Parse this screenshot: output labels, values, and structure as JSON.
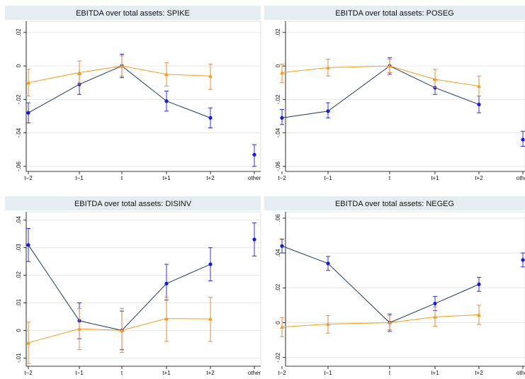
{
  "colors": {
    "series_a": "#1a1ad6",
    "series_a_line": "#1f3a5c",
    "series_b": "#f39c1e",
    "series_b_error": "#e8822a",
    "panel_header": "#e4edf2",
    "grid": "#e6e6e6",
    "axis": "#000000"
  },
  "chart_data": [
    {
      "type": "line",
      "title": "EBITDA over total assets: SPIKE",
      "categories": [
        "t−2",
        "t−1",
        "t",
        "t+1",
        "t+2",
        "other"
      ],
      "ylim": [
        -0.063,
        0.025
      ],
      "yticks": [
        ".02",
        "0",
        "-.02",
        "-.04",
        "-.06"
      ],
      "ytick_values": [
        0.02,
        0,
        -0.02,
        -0.04,
        -0.06
      ],
      "grid": true,
      "series": [
        {
          "marker": "circle",
          "values": [
            -0.028,
            -0.011,
            0.0,
            -0.021,
            -0.031,
            -0.053
          ],
          "ci": [
            [
              -0.034,
              -0.022
            ],
            [
              -0.017,
              -0.005
            ],
            [
              -0.007,
              0.007
            ],
            [
              -0.027,
              -0.015
            ],
            [
              -0.037,
              -0.025
            ],
            [
              -0.06,
              -0.047
            ]
          ]
        },
        {
          "marker": "triangle",
          "values": [
            -0.01,
            -0.004,
            0.0,
            -0.005,
            -0.006,
            null
          ],
          "ci": [
            [
              -0.018,
              -0.002
            ],
            [
              -0.011,
              0.003
            ],
            [
              -0.006,
              0.006
            ],
            [
              -0.012,
              0.002
            ],
            [
              -0.014,
              0.001
            ],
            null
          ]
        }
      ]
    },
    {
      "type": "line",
      "title": "EBITDA over total assets: POSEG",
      "categories": [
        "t−2",
        "t−1",
        "t",
        "t+1",
        "t+2",
        "other"
      ],
      "ylim": [
        -0.063,
        0.025
      ],
      "yticks": [
        ".02",
        "0",
        "-.02",
        "-.04",
        "-.06"
      ],
      "ytick_values": [
        0.02,
        0,
        -0.02,
        -0.04,
        -0.06
      ],
      "grid": true,
      "series": [
        {
          "marker": "circle",
          "values": [
            -0.031,
            -0.027,
            0.0,
            -0.013,
            -0.023,
            -0.044
          ],
          "ci": [
            [
              -0.035,
              -0.026
            ],
            [
              -0.031,
              -0.022
            ],
            [
              -0.005,
              0.005
            ],
            [
              -0.017,
              -0.008
            ],
            [
              -0.028,
              -0.018
            ],
            [
              -0.048,
              -0.039
            ]
          ]
        },
        {
          "marker": "triangle",
          "values": [
            -0.004,
            -0.001,
            0.0,
            -0.008,
            -0.012,
            null
          ],
          "ci": [
            [
              -0.01,
              0.001
            ],
            [
              -0.006,
              0.004
            ],
            [
              -0.004,
              0.004
            ],
            [
              -0.013,
              -0.002
            ],
            [
              -0.018,
              -0.006
            ],
            null
          ]
        }
      ]
    },
    {
      "type": "line",
      "title": "EBITDA over total assets: DISINV",
      "categories": [
        "t−2",
        "t−1",
        "t",
        "t+1",
        "t+2",
        "other"
      ],
      "ylim": [
        -0.013,
        0.042
      ],
      "yticks": [
        ".04",
        ".03",
        ".02",
        ".01",
        "0",
        "-.01"
      ],
      "ytick_values": [
        0.04,
        0.03,
        0.02,
        0.01,
        0,
        -0.01
      ],
      "grid": true,
      "series": [
        {
          "marker": "circle",
          "values": [
            0.031,
            0.0035,
            0.0,
            0.017,
            0.024,
            0.033
          ],
          "ci": [
            [
              0.025,
              0.037
            ],
            [
              -0.003,
              0.01
            ],
            [
              -0.007,
              0.007
            ],
            [
              0.011,
              0.024
            ],
            [
              0.018,
              0.03
            ],
            [
              0.027,
              0.039
            ]
          ]
        },
        {
          "marker": "triangle",
          "values": [
            -0.0045,
            0.0006,
            0.0,
            0.0043,
            0.0042,
            null
          ],
          "ci": [
            [
              -0.012,
              0.003
            ],
            [
              -0.007,
              0.008
            ],
            [
              -0.008,
              0.008
            ],
            [
              -0.004,
              0.012
            ],
            [
              -0.004,
              0.012
            ],
            null
          ]
        }
      ]
    },
    {
      "type": "line",
      "title": "EBITDA over total assets: NEGEG",
      "categories": [
        "t−2",
        "t−1",
        "t",
        "t+1",
        "t+2",
        "other"
      ],
      "ylim": [
        -0.025,
        0.062
      ],
      "yticks": [
        ".06",
        ".04",
        ".02",
        "0",
        "-.02"
      ],
      "ytick_values": [
        0.06,
        0.04,
        0.02,
        0,
        -0.02
      ],
      "grid": true,
      "series": [
        {
          "marker": "circle",
          "values": [
            0.044,
            0.034,
            0.0,
            0.011,
            0.022,
            0.036
          ],
          "ci": [
            [
              0.04,
              0.048
            ],
            [
              0.03,
              0.038
            ],
            [
              -0.005,
              0.005
            ],
            [
              0.007,
              0.015
            ],
            [
              0.018,
              0.026
            ],
            [
              0.032,
              0.04
            ]
          ]
        },
        {
          "marker": "triangle",
          "values": [
            -0.0025,
            -0.0008,
            0.0,
            0.0033,
            0.0045,
            null
          ],
          "ci": [
            [
              -0.008,
              0.003
            ],
            [
              -0.006,
              0.004
            ],
            [
              -0.004,
              0.004
            ],
            [
              -0.002,
              0.009
            ],
            [
              -0.001,
              0.01
            ],
            null
          ]
        }
      ]
    }
  ]
}
